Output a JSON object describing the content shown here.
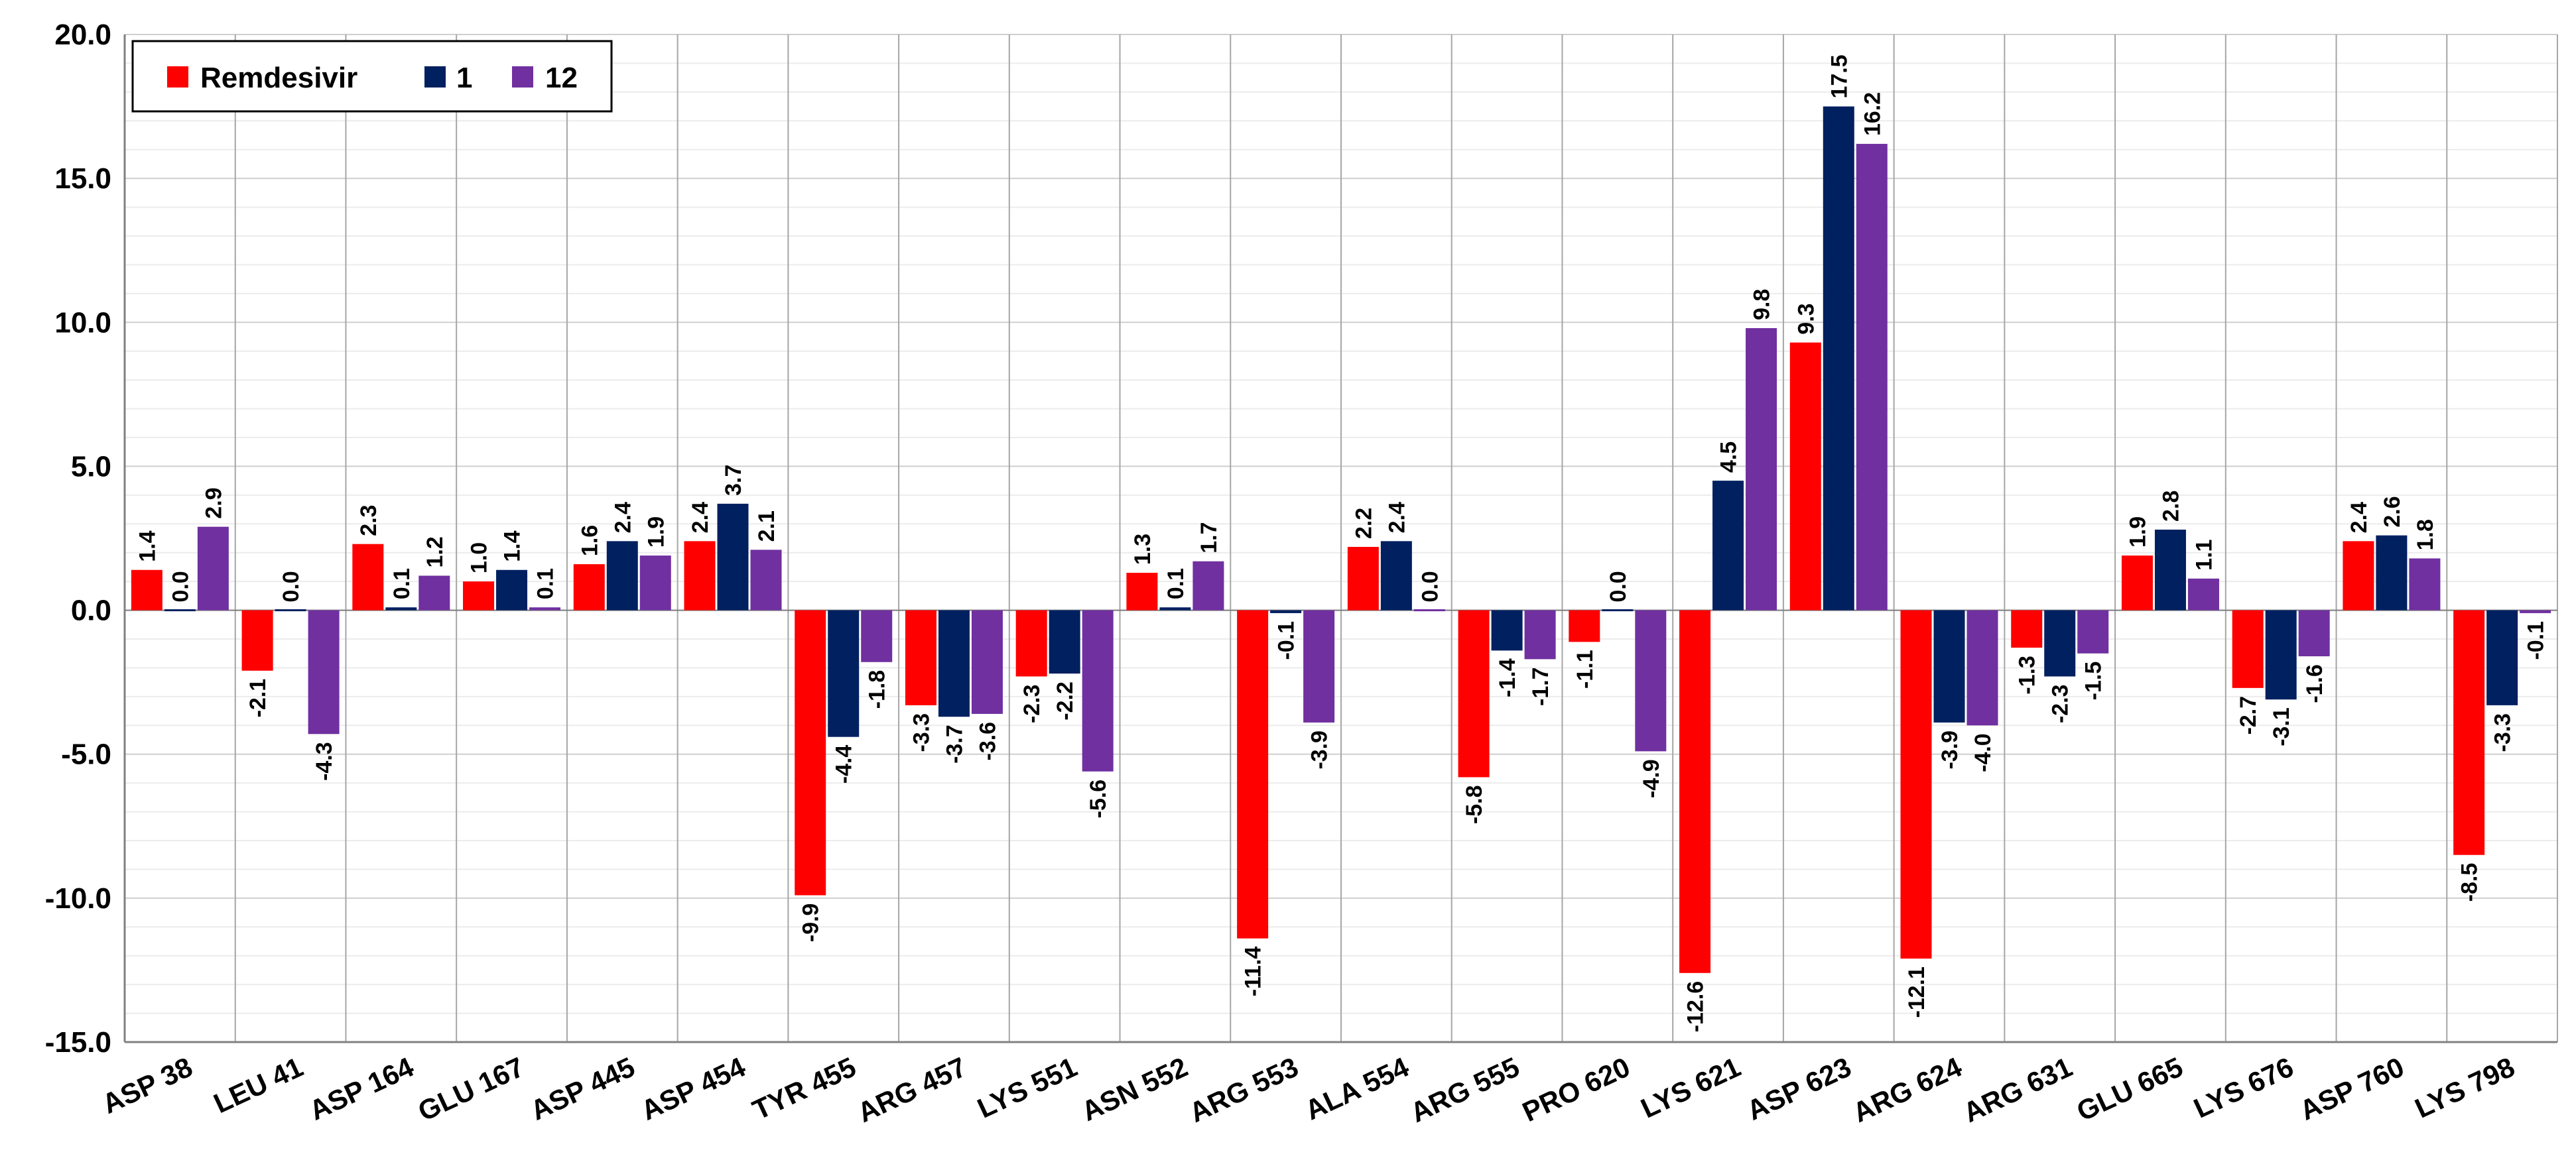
{
  "chart_data": {
    "type": "bar",
    "title": "",
    "xlabel": "",
    "ylabel": "",
    "ylim": [
      -15,
      20
    ],
    "yticks": [
      "20.0",
      "15.0",
      "10.0",
      "5.0",
      "0.0",
      "-5.0",
      "-10.0",
      "-15.0"
    ],
    "ytick_values": [
      20,
      15,
      10,
      5,
      0,
      -5,
      -10,
      -15
    ],
    "grid": true,
    "legend_position": "top-left",
    "categories": [
      "ASP 38",
      "LEU 41",
      "ASP 164",
      "GLU 167",
      "ASP 445",
      "ASP 454",
      "TYR 455",
      "ARG 457",
      "LYS 551",
      "ASN 552",
      "ARG 553",
      "ALA 554",
      "ARG 555",
      "PRO 620",
      "LYS 621",
      "ASP 623",
      "ARG 624",
      "ARG 631",
      "GLU 665",
      "LYS 676",
      "ASP 760",
      "LYS 798"
    ],
    "series": [
      {
        "name": "Remdesivir",
        "color": "#ff0000",
        "values": [
          1.4,
          -2.1,
          2.3,
          1.0,
          1.6,
          2.4,
          -9.9,
          -3.3,
          -2.3,
          1.3,
          -11.4,
          2.2,
          -5.8,
          -1.1,
          -12.6,
          9.3,
          -12.1,
          -1.3,
          1.9,
          -2.7,
          2.4,
          -8.5
        ],
        "labels": [
          "1.4",
          "-2.1",
          "2.3",
          "1.0",
          "1.6",
          "2.4",
          "-9.9",
          "-3.3",
          "-2.3",
          "1.3",
          "-11.4",
          "2.2",
          "-5.8",
          "-1.1",
          "-12.6",
          "9.3",
          "-12.1",
          "-1.3",
          "1.9",
          "-2.7",
          "2.4",
          "-8.5"
        ]
      },
      {
        "name": "1",
        "color": "#002060",
        "values": [
          0.0,
          0.0,
          0.1,
          1.4,
          2.4,
          3.7,
          -4.4,
          -3.7,
          -2.2,
          0.1,
          -0.1,
          2.4,
          -1.4,
          0.0,
          4.5,
          17.5,
          -3.9,
          -2.3,
          2.8,
          -3.1,
          2.6,
          -3.3
        ],
        "labels": [
          "0.0",
          "0.0",
          "0.1",
          "1.4",
          "2.4",
          "3.7",
          "-4.4",
          "-3.7",
          "-2.2",
          "0.1",
          "-0.1",
          "2.4",
          "-1.4",
          "0.0",
          "4.5",
          "17.5",
          "-3.9",
          "-2.3",
          "2.8",
          "-3.1",
          "2.6",
          "-3.3"
        ]
      },
      {
        "name": "12",
        "color": "#7030a0",
        "values": [
          2.9,
          -4.3,
          1.2,
          0.1,
          1.9,
          2.1,
          -1.8,
          -3.6,
          -5.6,
          1.7,
          -3.9,
          0.0,
          -1.7,
          -4.9,
          9.8,
          16.2,
          -4.0,
          -1.5,
          1.1,
          -1.6,
          1.8,
          -0.1
        ],
        "labels": [
          "2.9",
          "-4.3",
          "1.2",
          "0.1",
          "1.9",
          "2.1",
          "-1.8",
          "-3.6",
          "-5.6",
          "1.7",
          "-3.9",
          "0.0",
          "-1.7",
          "-4.9",
          "9.8",
          "16.2",
          "-4.0",
          "-1.5",
          "1.1",
          "-1.6",
          "1.8",
          "-0.1"
        ]
      }
    ]
  }
}
